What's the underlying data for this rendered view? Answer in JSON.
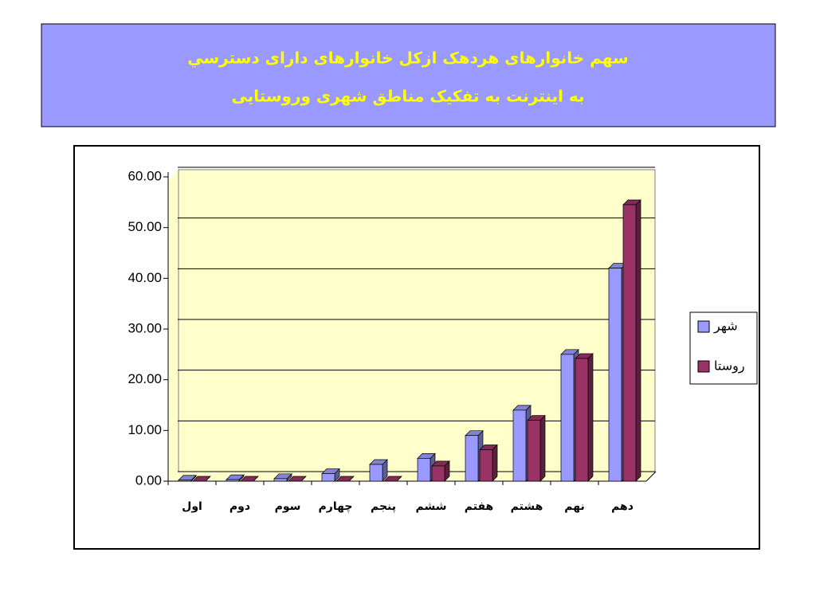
{
  "chart_data": {
    "type": "bar",
    "title": "سهم خانوارهای هردهک ازکل خانوارهای دارای دسترسي",
    "subtitle": "به اینترنت به تفکیک مناطق شهری وروستایی",
    "categories": [
      "اول",
      "دوم",
      "سوم",
      "چهارم",
      "پنجم",
      "ششم",
      "هفتم",
      "هشتم",
      "نهم",
      "دهم"
    ],
    "series": [
      {
        "name": "شهر",
        "color": "#9999ff",
        "values": [
          0.2,
          0.3,
          0.5,
          1.5,
          3.3,
          4.5,
          9,
          14,
          25,
          42
        ]
      },
      {
        "name": "روستا",
        "color": "#993366",
        "values": [
          0,
          0,
          0,
          0,
          0,
          3,
          6.2,
          12,
          24.2,
          54.5
        ]
      }
    ],
    "ylim": [
      0,
      60
    ],
    "yticks": [
      {
        "value": 0,
        "label": "0.00"
      },
      {
        "value": 10,
        "label": "10.00"
      },
      {
        "value": 20,
        "label": "20.00"
      },
      {
        "value": 30,
        "label": "30.00"
      },
      {
        "value": 40,
        "label": "40.00"
      },
      {
        "value": 50,
        "label": "50.00"
      },
      {
        "value": 60,
        "label": "60.00"
      }
    ],
    "grid": true,
    "legend": "right"
  }
}
